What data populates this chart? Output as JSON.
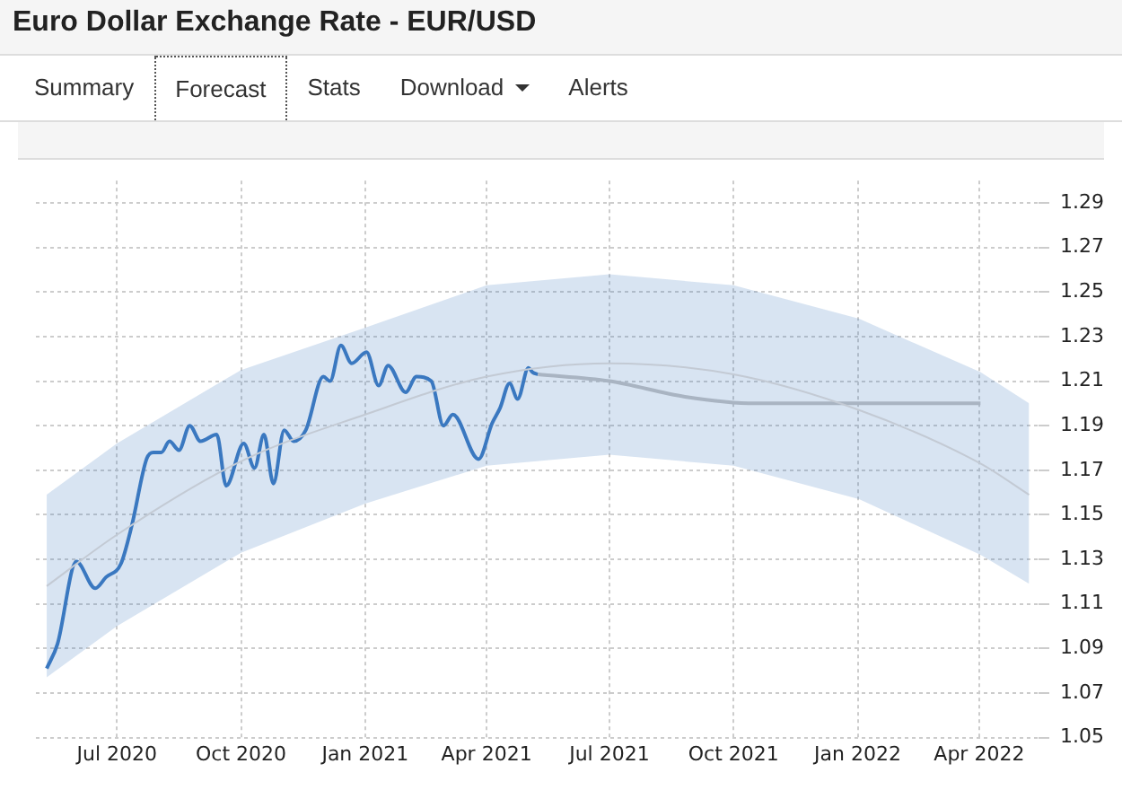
{
  "chart_data": {
    "type": "line",
    "title": "Euro Dollar Exchange Rate - EUR/USD",
    "annotations": [
      "Summary",
      "Forecast",
      "Stats",
      "Download",
      "Alerts"
    ],
    "series": [
      {
        "color": "#3a78c0",
        "x": [
          "2020-05-10",
          "2020-05-18",
          "2020-06-01",
          "2020-06-15",
          "2020-06-23",
          "2020-07-04",
          "2020-07-12",
          "2020-07-23",
          "2020-07-28",
          "2020-08-03",
          "2020-08-09",
          "2020-08-16",
          "2020-08-24",
          "2020-09-01",
          "2020-09-13",
          "2020-09-20",
          "2020-10-03",
          "2020-10-11",
          "2020-10-18",
          "2020-10-25",
          "2020-11-02",
          "2020-11-09",
          "2020-11-18",
          "2020-12-01",
          "2020-12-06",
          "2020-12-14",
          "2020-12-22",
          "2021-01-02",
          "2021-01-11",
          "2021-01-18",
          "2021-01-31",
          "2021-02-08",
          "2021-02-19",
          "2021-02-28",
          "2021-03-07",
          "2021-03-26",
          "2021-04-05",
          "2021-04-11",
          "2021-04-18",
          "2021-04-24",
          "2021-05-02",
          "2021-05-05",
          "2021-05-09"
        ],
        "values": [
          1.081,
          1.092,
          1.129,
          1.117,
          1.122,
          1.128,
          1.145,
          1.175,
          1.178,
          1.178,
          1.183,
          1.179,
          1.19,
          1.183,
          1.186,
          1.163,
          1.182,
          1.171,
          1.186,
          1.164,
          1.188,
          1.183,
          1.188,
          1.212,
          1.21,
          1.226,
          1.218,
          1.223,
          1.208,
          1.217,
          1.205,
          1.212,
          1.21,
          1.19,
          1.195,
          1.175,
          1.191,
          1.198,
          1.209,
          1.202,
          1.216,
          1.214,
          1.213
        ]
      },
      {
        "color": "#a9b4c2",
        "x": [
          "2021-05-09",
          "2021-07-01",
          "2021-08-26",
          "2021-10-17",
          "2022-01-02",
          "2022-04-02"
        ],
        "values": [
          1.213,
          1.21,
          1.203,
          1.2,
          1.2,
          1.2
        ]
      },
      {
        "color": "#c3cad4",
        "x": [
          "2020-05-10",
          "2020-07-01",
          "2020-10-01",
          "2021-01-01",
          "2021-04-01",
          "2021-07-01",
          "2021-10-01",
          "2022-01-02",
          "2022-04-02",
          "2022-05-08"
        ],
        "values": [
          1.118,
          1.141,
          1.174,
          1.195,
          1.212,
          1.218,
          1.213,
          1.197,
          1.173,
          1.159
        ],
        "lower": [
          1.077,
          1.1,
          1.133,
          1.155,
          1.172,
          1.177,
          1.172,
          1.157,
          1.132,
          1.119
        ],
        "upper": [
          1.159,
          1.182,
          1.215,
          1.234,
          1.253,
          1.258,
          1.253,
          1.238,
          1.214,
          1.2
        ]
      }
    ],
    "xlim": [
      "2020-05-02",
      "2022-05-15"
    ],
    "xticks": [
      {
        "value": "2020-07-01",
        "label": "Jul 2020"
      },
      {
        "value": "2020-10-01",
        "label": "Oct 2020"
      },
      {
        "value": "2021-01-01",
        "label": "Jan 2021"
      },
      {
        "value": "2021-04-01",
        "label": "Apr 2021"
      },
      {
        "value": "2021-07-01",
        "label": "Jul 2021"
      },
      {
        "value": "2021-10-01",
        "label": "Oct 2021"
      },
      {
        "value": "2022-01-01",
        "label": "Jan 2022"
      },
      {
        "value": "2022-04-01",
        "label": "Apr 2022"
      }
    ],
    "ylim": [
      1.05,
      1.3
    ],
    "yticks": [
      1.05,
      1.07,
      1.09,
      1.11,
      1.13,
      1.15,
      1.17,
      1.19,
      1.21,
      1.23,
      1.25,
      1.27,
      1.29
    ],
    "grid": true,
    "legend": false,
    "marker": "none",
    "line_style": "solid"
  }
}
